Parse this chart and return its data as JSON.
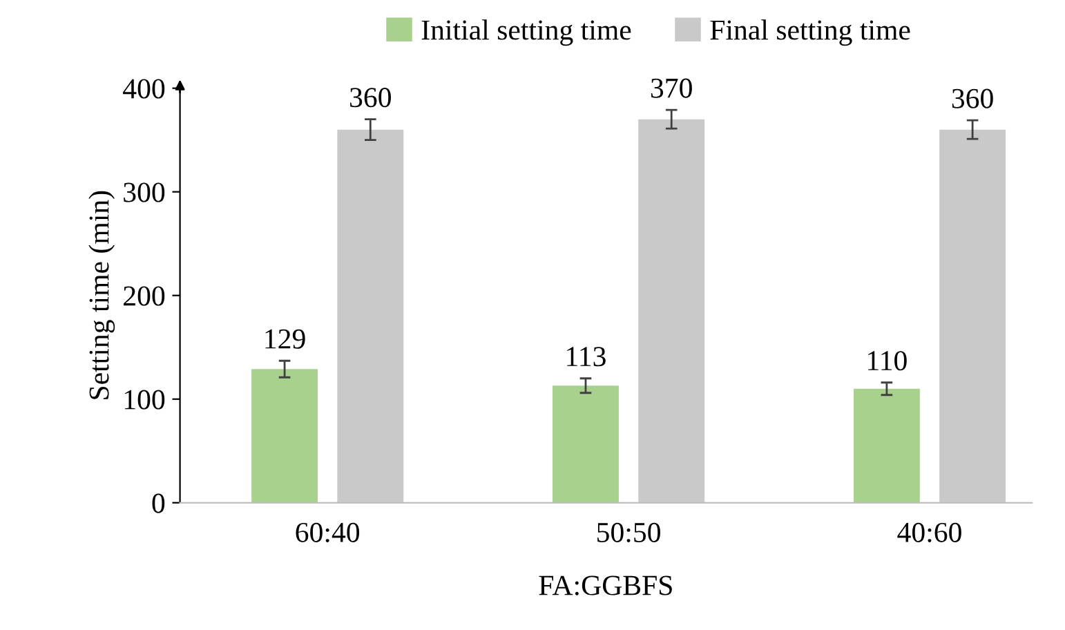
{
  "chart_data": {
    "type": "bar",
    "xlabel": "FA:GGBFS",
    "ylabel": "Setting time (min)",
    "categories": [
      "60:40",
      "50:50",
      "40:60"
    ],
    "series": [
      {
        "name": "Initial setting time",
        "color": "#a9d18e",
        "values": [
          129,
          113,
          110
        ],
        "errors": [
          8,
          7,
          6
        ]
      },
      {
        "name": "Final setting time",
        "color": "#c9c9c9",
        "values": [
          360,
          370,
          360
        ],
        "errors": [
          10,
          9,
          9
        ]
      }
    ],
    "ylim": [
      0,
      400
    ],
    "yticks": [
      0,
      100,
      200,
      300,
      400
    ],
    "data_labels": true,
    "grid": false,
    "legend": "top"
  }
}
